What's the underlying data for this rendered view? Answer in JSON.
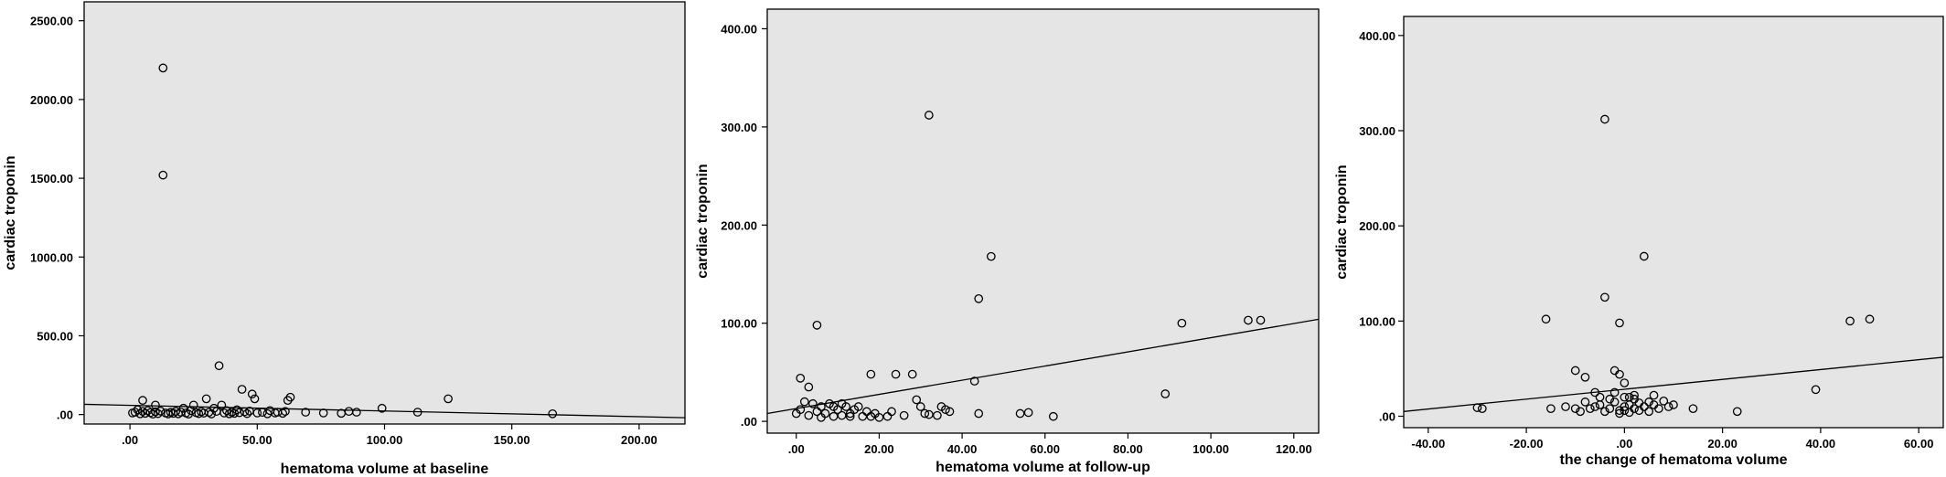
{
  "chart_data": [
    {
      "type": "scatter",
      "xlabel": "hematoma volume at baseline",
      "ylabel": "cardiac troponin",
      "xlim": [
        -18,
        218
      ],
      "ylim": [
        -60,
        2620
      ],
      "xticks": [
        0,
        50,
        100,
        150,
        200
      ],
      "xtick_labels": [
        ".00",
        "50.00",
        "100.00",
        "150.00",
        "200.00"
      ],
      "yticks": [
        0,
        500,
        1000,
        1500,
        2000,
        2500
      ],
      "ytick_labels": [
        ".00",
        "500.00",
        "1000.00",
        "1500.00",
        "2000.00",
        "2500.00"
      ],
      "fit_line": {
        "x": [
          -18,
          218
        ],
        "y": [
          65,
          -20
        ]
      },
      "grid": false,
      "background": "#e5e5e5",
      "points": [
        [
          13,
          2200
        ],
        [
          13,
          1520
        ],
        [
          35,
          310
        ],
        [
          44,
          160
        ],
        [
          48,
          130
        ],
        [
          49,
          100
        ],
        [
          30,
          100
        ],
        [
          25,
          60
        ],
        [
          36,
          60
        ],
        [
          21,
          40
        ],
        [
          33,
          40
        ],
        [
          10,
          60
        ],
        [
          5,
          90
        ],
        [
          1,
          10
        ],
        [
          2,
          15
        ],
        [
          3,
          30
        ],
        [
          4,
          5
        ],
        [
          5,
          20
        ],
        [
          6,
          8
        ],
        [
          7,
          25
        ],
        [
          8,
          12
        ],
        [
          9,
          3
        ],
        [
          10,
          18
        ],
        [
          11,
          6
        ],
        [
          12,
          22
        ],
        [
          14,
          10
        ],
        [
          15,
          4
        ],
        [
          16,
          14
        ],
        [
          17,
          8
        ],
        [
          18,
          20
        ],
        [
          19,
          5
        ],
        [
          20,
          15
        ],
        [
          22,
          10
        ],
        [
          23,
          3
        ],
        [
          24,
          25
        ],
        [
          26,
          12
        ],
        [
          27,
          6
        ],
        [
          28,
          18
        ],
        [
          29,
          9
        ],
        [
          31,
          14
        ],
        [
          32,
          4
        ],
        [
          34,
          20
        ],
        [
          37,
          10
        ],
        [
          38,
          25
        ],
        [
          39,
          5
        ],
        [
          40,
          15
        ],
        [
          41,
          8
        ],
        [
          42,
          30
        ],
        [
          43,
          12
        ],
        [
          45,
          18
        ],
        [
          46,
          6
        ],
        [
          47,
          22
        ],
        [
          50,
          10
        ],
        [
          52,
          14
        ],
        [
          54,
          5
        ],
        [
          55,
          25
        ],
        [
          57,
          10
        ],
        [
          58,
          15
        ],
        [
          60,
          8
        ],
        [
          61,
          20
        ],
        [
          62,
          90
        ],
        [
          63,
          110
        ],
        [
          69,
          15
        ],
        [
          76,
          10
        ],
        [
          83,
          8
        ],
        [
          86,
          20
        ],
        [
          89,
          15
        ],
        [
          99,
          40
        ],
        [
          113,
          15
        ],
        [
          125,
          100
        ],
        [
          166,
          5
        ]
      ]
    },
    {
      "type": "scatter",
      "xlabel": "hematoma volume at follow-up",
      "ylabel": "cardiac troponin",
      "xlim": [
        -7,
        126
      ],
      "ylim": [
        -12,
        420
      ],
      "xticks": [
        0,
        20,
        40,
        60,
        80,
        100,
        120
      ],
      "xtick_labels": [
        ".00",
        "20.00",
        "40.00",
        "60.00",
        "80.00",
        "100.00",
        "120.00"
      ],
      "yticks": [
        0,
        100,
        200,
        300,
        400
      ],
      "ytick_labels": [
        ".00",
        "100.00",
        "200.00",
        "300.00",
        "400.00"
      ],
      "fit_line": {
        "x": [
          -7,
          126
        ],
        "y": [
          8,
          104
        ]
      },
      "grid": false,
      "background": "#e5e5e5",
      "points": [
        [
          32,
          312
        ],
        [
          47,
          168
        ],
        [
          44,
          125
        ],
        [
          5,
          98
        ],
        [
          93,
          100
        ],
        [
          109,
          103
        ],
        [
          112,
          103
        ],
        [
          18,
          48
        ],
        [
          24,
          48
        ],
        [
          28,
          48
        ],
        [
          43,
          41
        ],
        [
          1,
          44
        ],
        [
          89,
          28
        ],
        [
          3,
          35
        ],
        [
          29,
          22
        ],
        [
          30,
          15
        ],
        [
          35,
          15
        ],
        [
          2,
          20
        ],
        [
          4,
          18
        ],
        [
          8,
          18
        ],
        [
          12,
          15
        ],
        [
          14,
          12
        ],
        [
          15,
          15
        ],
        [
          17,
          10
        ],
        [
          0,
          8
        ],
        [
          1,
          12
        ],
        [
          3,
          6
        ],
        [
          5,
          10
        ],
        [
          6,
          4
        ],
        [
          7,
          8
        ],
        [
          9,
          5
        ],
        [
          10,
          12
        ],
        [
          11,
          6
        ],
        [
          13,
          8
        ],
        [
          16,
          5
        ],
        [
          19,
          8
        ],
        [
          22,
          5
        ],
        [
          23,
          10
        ],
        [
          26,
          6
        ],
        [
          31,
          8
        ],
        [
          32,
          7
        ],
        [
          34,
          6
        ],
        [
          36,
          12
        ],
        [
          37,
          10
        ],
        [
          44,
          8
        ],
        [
          54,
          8
        ],
        [
          56,
          9
        ],
        [
          62,
          5
        ],
        [
          18,
          5
        ],
        [
          20,
          4
        ],
        [
          6,
          15
        ],
        [
          9,
          15
        ],
        [
          11,
          18
        ],
        [
          13,
          5
        ]
      ]
    },
    {
      "type": "scatter",
      "xlabel": "the change of hematoma volume",
      "ylabel": "cardiac troponin",
      "xlim": [
        -45,
        65
      ],
      "ylim": [
        -12,
        420
      ],
      "xticks": [
        -40,
        -20,
        0,
        20,
        40,
        60
      ],
      "xtick_labels": [
        "-40.00",
        "-20.00",
        ".00",
        "20.00",
        "40.00",
        "60.00"
      ],
      "yticks": [
        0,
        100,
        200,
        300,
        400
      ],
      "ytick_labels": [
        ".00",
        "100.00",
        "200.00",
        "300.00",
        "400.00"
      ],
      "fit_line": {
        "x": [
          -45,
          65
        ],
        "y": [
          5,
          62
        ]
      },
      "grid": false,
      "background": "#e5e5e5",
      "points": [
        [
          -4,
          312
        ],
        [
          4,
          168
        ],
        [
          -4,
          125
        ],
        [
          -1,
          98
        ],
        [
          -16,
          102
        ],
        [
          46,
          100
        ],
        [
          50,
          102
        ],
        [
          -10,
          48
        ],
        [
          -2,
          48
        ],
        [
          -8,
          41
        ],
        [
          -1,
          44
        ],
        [
          39,
          28
        ],
        [
          0,
          35
        ],
        [
          -29,
          8
        ],
        [
          -12,
          10
        ],
        [
          -10,
          8
        ],
        [
          -9,
          5
        ],
        [
          -7,
          8
        ],
        [
          -6,
          10
        ],
        [
          -5,
          12
        ],
        [
          -4,
          5
        ],
        [
          -3,
          8
        ],
        [
          -2,
          15
        ],
        [
          -1,
          6
        ],
        [
          0,
          20
        ],
        [
          0,
          10
        ],
        [
          1,
          12
        ],
        [
          1,
          4
        ],
        [
          2,
          8
        ],
        [
          2,
          18
        ],
        [
          3,
          6
        ],
        [
          3,
          14
        ],
        [
          4,
          10
        ],
        [
          5,
          5
        ],
        [
          6,
          22
        ],
        [
          6,
          12
        ],
        [
          7,
          8
        ],
        [
          8,
          16
        ],
        [
          9,
          10
        ],
        [
          10,
          12
        ],
        [
          14,
          8
        ],
        [
          23,
          5
        ],
        [
          -1,
          3
        ],
        [
          0,
          6
        ],
        [
          1,
          20
        ],
        [
          -3,
          18
        ],
        [
          2,
          22
        ],
        [
          -2,
          25
        ],
        [
          5,
          15
        ],
        [
          -5,
          20
        ],
        [
          -15,
          8
        ],
        [
          -30,
          9
        ],
        [
          -8,
          15
        ],
        [
          -6,
          25
        ]
      ]
    }
  ]
}
